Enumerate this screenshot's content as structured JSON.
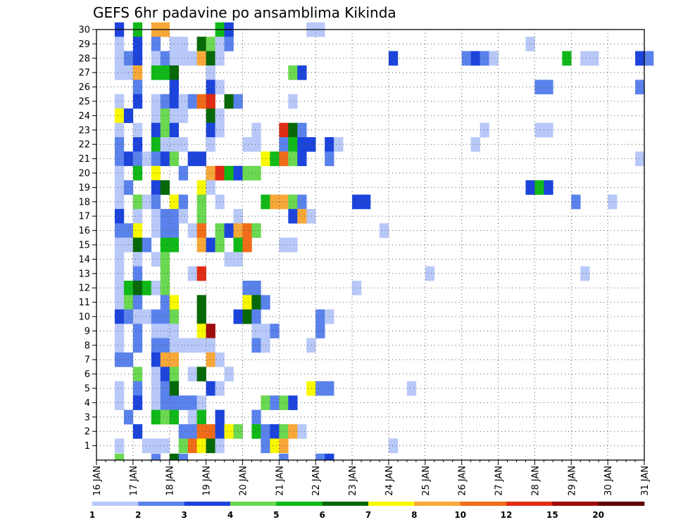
{
  "chart_data": {
    "type": "heatmap",
    "title": "GEFS 6hr padavine po ansamblima Kikinda",
    "xlabel": "",
    "ylabel": "",
    "x_ticks": [
      "16 JAN",
      "17 JAN",
      "18 JAN",
      "19 JAN",
      "20 JAN",
      "21 JAN",
      "22 JAN",
      "23 JAN",
      "24 JAN",
      "25 JAN",
      "26 JAN",
      "27 JAN",
      "28 JAN",
      "29 JAN",
      "30 JAN",
      "31 JAN"
    ],
    "x_range_days": [
      0,
      15
    ],
    "y_ticks": [
      1,
      2,
      3,
      4,
      5,
      6,
      7,
      8,
      9,
      10,
      11,
      12,
      13,
      14,
      15,
      16,
      17,
      18,
      19,
      20,
      21,
      22,
      23,
      24,
      25,
      26,
      27,
      28,
      29,
      30
    ],
    "y_range": [
      0,
      30
    ],
    "grid": true,
    "colorbar": {
      "levels": [
        "1",
        "2",
        "3",
        "4",
        "5",
        "6",
        "7",
        "8",
        "10",
        "12",
        "15",
        "20"
      ],
      "colors": [
        "#b8c8f8",
        "#5a82ec",
        "#1c44dc",
        "#6ad850",
        "#10b818",
        "#066806",
        "#f8f800",
        "#f8a838",
        "#f06c18",
        "#e02c14",
        "#a00c0c",
        "#600000"
      ]
    },
    "cells_note": "each cell: [member, x-start in days since 16 JAN 00z (6-hourly steps), color class index 0-11]",
    "cells": [
      [
        30,
        0.5,
        2
      ],
      [
        30,
        1,
        4
      ],
      [
        30,
        1.5,
        7
      ],
      [
        30,
        1.75,
        7
      ],
      [
        30,
        3.25,
        4
      ],
      [
        30,
        3.5,
        2
      ],
      [
        30,
        5.75,
        0
      ],
      [
        30,
        6,
        0
      ],
      [
        29,
        0.5,
        0
      ],
      [
        29,
        1,
        2
      ],
      [
        29,
        1.5,
        1
      ],
      [
        29,
        2,
        0
      ],
      [
        29,
        2.25,
        0
      ],
      [
        29,
        2.75,
        5
      ],
      [
        29,
        3,
        3
      ],
      [
        29,
        3.25,
        0
      ],
      [
        29,
        3.5,
        1
      ],
      [
        29,
        11.75,
        0
      ],
      [
        28,
        0.5,
        0
      ],
      [
        28,
        0.75,
        1
      ],
      [
        28,
        1,
        2
      ],
      [
        28,
        1.5,
        0
      ],
      [
        28,
        1.75,
        1
      ],
      [
        28,
        2,
        0
      ],
      [
        28,
        2.25,
        0
      ],
      [
        28,
        2.5,
        0
      ],
      [
        28,
        2.75,
        7
      ],
      [
        28,
        3,
        5
      ],
      [
        28,
        3.25,
        0
      ],
      [
        28,
        8,
        2
      ],
      [
        28,
        10,
        1
      ],
      [
        28,
        10.25,
        2
      ],
      [
        28,
        10.5,
        1
      ],
      [
        28,
        10.75,
        0
      ],
      [
        28,
        12.75,
        4
      ],
      [
        28,
        13.25,
        0
      ],
      [
        28,
        13.5,
        0
      ],
      [
        28,
        14.75,
        2
      ],
      [
        28,
        15,
        1
      ],
      [
        27,
        0.5,
        0
      ],
      [
        27,
        0.75,
        0
      ],
      [
        27,
        1,
        7
      ],
      [
        27,
        1.5,
        4
      ],
      [
        27,
        1.75,
        4
      ],
      [
        27,
        2,
        5
      ],
      [
        27,
        3,
        0
      ],
      [
        27,
        5.25,
        3
      ],
      [
        27,
        5.5,
        2
      ],
      [
        26,
        1,
        1
      ],
      [
        26,
        2,
        2
      ],
      [
        26,
        3,
        2
      ],
      [
        26,
        3.25,
        0
      ],
      [
        26,
        12,
        1
      ],
      [
        26,
        12.25,
        1
      ],
      [
        26,
        14.75,
        1
      ],
      [
        25,
        0.5,
        0
      ],
      [
        25,
        1,
        2
      ],
      [
        25,
        1.5,
        0
      ],
      [
        25,
        1.75,
        1
      ],
      [
        25,
        2,
        2
      ],
      [
        25,
        2.25,
        0
      ],
      [
        25,
        2.5,
        1
      ],
      [
        25,
        2.75,
        8
      ],
      [
        25,
        3,
        9
      ],
      [
        25,
        3.5,
        5
      ],
      [
        25,
        3.75,
        1
      ],
      [
        25,
        5.25,
        0
      ],
      [
        24,
        0.5,
        6
      ],
      [
        24,
        0.75,
        2
      ],
      [
        24,
        1.5,
        0
      ],
      [
        24,
        1.75,
        3
      ],
      [
        24,
        2,
        0
      ],
      [
        24,
        2.25,
        0
      ],
      [
        24,
        3,
        5
      ],
      [
        24,
        3.25,
        0
      ],
      [
        23,
        0.5,
        0
      ],
      [
        23,
        1,
        0
      ],
      [
        23,
        1.5,
        2
      ],
      [
        23,
        1.75,
        3
      ],
      [
        23,
        2,
        2
      ],
      [
        23,
        3,
        2
      ],
      [
        23,
        3.25,
        0
      ],
      [
        23,
        4.25,
        0
      ],
      [
        23,
        5,
        9
      ],
      [
        23,
        5.25,
        5
      ],
      [
        23,
        5.5,
        1
      ],
      [
        23,
        10.5,
        0
      ],
      [
        23,
        12,
        0
      ],
      [
        23,
        12.25,
        0
      ],
      [
        22,
        0.5,
        1
      ],
      [
        22,
        1,
        2
      ],
      [
        22,
        1.5,
        4
      ],
      [
        22,
        1.75,
        0
      ],
      [
        22,
        2,
        0
      ],
      [
        22,
        2.25,
        0
      ],
      [
        22,
        3,
        0
      ],
      [
        22,
        4,
        0
      ],
      [
        22,
        4.25,
        0
      ],
      [
        22,
        5,
        1
      ],
      [
        22,
        5.25,
        4
      ],
      [
        22,
        5.5,
        2
      ],
      [
        22,
        5.75,
        2
      ],
      [
        22,
        6.25,
        2
      ],
      [
        22,
        6.5,
        0
      ],
      [
        22,
        10.25,
        0
      ],
      [
        21,
        0.5,
        1
      ],
      [
        21,
        0.75,
        2
      ],
      [
        21,
        1,
        1
      ],
      [
        21,
        1.25,
        0
      ],
      [
        21,
        1.5,
        1
      ],
      [
        21,
        1.75,
        2
      ],
      [
        21,
        2,
        3
      ],
      [
        21,
        2.5,
        2
      ],
      [
        21,
        2.75,
        2
      ],
      [
        21,
        4.5,
        6
      ],
      [
        21,
        4.75,
        4
      ],
      [
        21,
        5,
        8
      ],
      [
        21,
        5.25,
        3
      ],
      [
        21,
        5.5,
        2
      ],
      [
        21,
        6.25,
        1
      ],
      [
        21,
        14.75,
        0
      ],
      [
        20,
        0.5,
        0
      ],
      [
        20,
        1,
        4
      ],
      [
        20,
        1.5,
        6
      ],
      [
        20,
        2.25,
        1
      ],
      [
        20,
        3,
        7
      ],
      [
        20,
        3.25,
        9
      ],
      [
        20,
        3.5,
        4
      ],
      [
        20,
        3.75,
        2
      ],
      [
        20,
        4,
        3
      ],
      [
        20,
        4.25,
        3
      ],
      [
        19,
        0.5,
        0
      ],
      [
        19,
        0.75,
        1
      ],
      [
        19,
        1.5,
        2
      ],
      [
        19,
        1.75,
        5
      ],
      [
        19,
        2.75,
        6
      ],
      [
        19,
        3,
        0
      ],
      [
        19,
        11.75,
        2
      ],
      [
        19,
        12,
        4
      ],
      [
        19,
        12.25,
        2
      ],
      [
        18,
        0.5,
        0
      ],
      [
        18,
        1,
        3
      ],
      [
        18,
        1.25,
        0
      ],
      [
        18,
        1.5,
        1
      ],
      [
        18,
        2,
        6
      ],
      [
        18,
        2.25,
        1
      ],
      [
        18,
        2.75,
        3
      ],
      [
        18,
        3.25,
        0
      ],
      [
        18,
        4.5,
        4
      ],
      [
        18,
        4.75,
        7
      ],
      [
        18,
        5,
        7
      ],
      [
        18,
        5.25,
        3
      ],
      [
        18,
        5.5,
        1
      ],
      [
        18,
        7,
        2
      ],
      [
        18,
        7.25,
        2
      ],
      [
        18,
        13,
        1
      ],
      [
        18,
        14,
        0
      ],
      [
        17,
        0.5,
        2
      ],
      [
        17,
        1,
        0
      ],
      [
        17,
        1.5,
        0
      ],
      [
        17,
        1.75,
        1
      ],
      [
        17,
        2,
        1
      ],
      [
        17,
        2.25,
        0
      ],
      [
        17,
        2.75,
        3
      ],
      [
        17,
        3.75,
        0
      ],
      [
        17,
        5.25,
        2
      ],
      [
        17,
        5.5,
        7
      ],
      [
        17,
        5.75,
        0
      ],
      [
        16,
        0.5,
        1
      ],
      [
        16,
        0.75,
        1
      ],
      [
        16,
        1,
        6
      ],
      [
        16,
        1.5,
        0
      ],
      [
        16,
        1.75,
        1
      ],
      [
        16,
        2,
        1
      ],
      [
        16,
        2.5,
        0
      ],
      [
        16,
        2.75,
        8
      ],
      [
        16,
        3.25,
        3
      ],
      [
        16,
        3.5,
        2
      ],
      [
        16,
        3.75,
        7
      ],
      [
        16,
        4,
        8
      ],
      [
        16,
        4.25,
        3
      ],
      [
        16,
        7.75,
        0
      ],
      [
        15,
        0.5,
        0
      ],
      [
        15,
        0.75,
        0
      ],
      [
        15,
        1,
        5
      ],
      [
        15,
        1.25,
        1
      ],
      [
        15,
        1.75,
        4
      ],
      [
        15,
        2,
        4
      ],
      [
        15,
        2.75,
        7
      ],
      [
        15,
        3,
        2
      ],
      [
        15,
        3.25,
        3
      ],
      [
        15,
        3.75,
        4
      ],
      [
        15,
        4,
        8
      ],
      [
        15,
        5,
        0
      ],
      [
        15,
        5.25,
        0
      ],
      [
        14,
        0.5,
        0
      ],
      [
        14,
        1,
        0
      ],
      [
        14,
        1.5,
        0
      ],
      [
        14,
        1.75,
        3
      ],
      [
        14,
        3.5,
        0
      ],
      [
        14,
        3.75,
        0
      ],
      [
        13,
        0.5,
        0
      ],
      [
        13,
        1,
        1
      ],
      [
        13,
        1.75,
        3
      ],
      [
        13,
        2.5,
        0
      ],
      [
        13,
        2.75,
        9
      ],
      [
        13,
        9,
        0
      ],
      [
        13,
        13.25,
        0
      ],
      [
        12,
        0.5,
        0
      ],
      [
        12,
        0.75,
        4
      ],
      [
        12,
        1,
        5
      ],
      [
        12,
        1.25,
        4
      ],
      [
        12,
        1.5,
        0
      ],
      [
        12,
        1.75,
        3
      ],
      [
        12,
        4,
        1
      ],
      [
        12,
        4.25,
        1
      ],
      [
        12,
        7,
        0
      ],
      [
        11,
        0.5,
        0
      ],
      [
        11,
        0.75,
        3
      ],
      [
        11,
        1,
        1
      ],
      [
        11,
        1.75,
        1
      ],
      [
        11,
        2,
        6
      ],
      [
        11,
        2.75,
        5
      ],
      [
        11,
        4,
        6
      ],
      [
        11,
        4.25,
        5
      ],
      [
        11,
        4.5,
        1
      ],
      [
        10,
        0.5,
        2
      ],
      [
        10,
        0.75,
        1
      ],
      [
        10,
        1,
        0
      ],
      [
        10,
        1.25,
        0
      ],
      [
        10,
        1.5,
        1
      ],
      [
        10,
        1.75,
        1
      ],
      [
        10,
        2,
        3
      ],
      [
        10,
        2.75,
        5
      ],
      [
        10,
        3.75,
        2
      ],
      [
        10,
        4,
        5
      ],
      [
        10,
        4.25,
        1
      ],
      [
        10,
        6,
        1
      ],
      [
        10,
        6.25,
        0
      ],
      [
        9,
        0.5,
        0
      ],
      [
        9,
        1,
        1
      ],
      [
        9,
        1.5,
        0
      ],
      [
        9,
        1.75,
        0
      ],
      [
        9,
        2,
        0
      ],
      [
        9,
        2.75,
        6
      ],
      [
        9,
        3,
        10
      ],
      [
        9,
        4.25,
        0
      ],
      [
        9,
        4.5,
        0
      ],
      [
        9,
        4.75,
        1
      ],
      [
        9,
        6,
        1
      ],
      [
        8,
        0.5,
        0
      ],
      [
        8,
        1,
        1
      ],
      [
        8,
        1.5,
        1
      ],
      [
        8,
        1.75,
        1
      ],
      [
        8,
        2,
        0
      ],
      [
        8,
        2.25,
        0
      ],
      [
        8,
        2.5,
        0
      ],
      [
        8,
        2.75,
        0
      ],
      [
        8,
        3,
        0
      ],
      [
        8,
        4.25,
        1
      ],
      [
        8,
        4.5,
        0
      ],
      [
        8,
        5.75,
        0
      ],
      [
        7,
        0.5,
        1
      ],
      [
        7,
        0.75,
        1
      ],
      [
        7,
        1.5,
        2
      ],
      [
        7,
        1.75,
        7
      ],
      [
        7,
        2,
        7
      ],
      [
        7,
        3,
        7
      ],
      [
        7,
        3.25,
        0
      ],
      [
        6,
        1,
        3
      ],
      [
        6,
        1.5,
        0
      ],
      [
        6,
        1.75,
        2
      ],
      [
        6,
        2,
        3
      ],
      [
        6,
        2.5,
        0
      ],
      [
        6,
        2.75,
        5
      ],
      [
        6,
        3.5,
        0
      ],
      [
        5,
        0.5,
        0
      ],
      [
        5,
        1,
        1
      ],
      [
        5,
        1.5,
        0
      ],
      [
        5,
        1.75,
        1
      ],
      [
        5,
        2,
        5
      ],
      [
        5,
        3,
        2
      ],
      [
        5,
        3.25,
        0
      ],
      [
        5,
        5.75,
        6
      ],
      [
        5,
        6,
        1
      ],
      [
        5,
        6.25,
        1
      ],
      [
        5,
        8.5,
        0
      ],
      [
        4,
        0.5,
        0
      ],
      [
        4,
        1,
        2
      ],
      [
        4,
        1.5,
        0
      ],
      [
        4,
        1.75,
        1
      ],
      [
        4,
        2,
        1
      ],
      [
        4,
        2.25,
        1
      ],
      [
        4,
        2.5,
        1
      ],
      [
        4,
        2.75,
        0
      ],
      [
        4,
        4.5,
        3
      ],
      [
        4,
        4.75,
        1
      ],
      [
        4,
        5,
        3
      ],
      [
        4,
        5.25,
        2
      ],
      [
        3,
        0.75,
        1
      ],
      [
        3,
        1.5,
        4
      ],
      [
        3,
        1.75,
        3
      ],
      [
        3,
        2,
        4
      ],
      [
        3,
        2.5,
        0
      ],
      [
        3,
        2.75,
        4
      ],
      [
        3,
        3.25,
        2
      ],
      [
        3,
        4.25,
        1
      ],
      [
        2,
        1,
        2
      ],
      [
        2,
        2.25,
        1
      ],
      [
        2,
        2.5,
        1
      ],
      [
        2,
        2.75,
        8
      ],
      [
        2,
        3,
        8
      ],
      [
        2,
        3.25,
        2
      ],
      [
        2,
        3.5,
        6
      ],
      [
        2,
        3.75,
        3
      ],
      [
        2,
        4.25,
        4
      ],
      [
        2,
        4.5,
        1
      ],
      [
        2,
        4.75,
        2
      ],
      [
        2,
        5,
        3
      ],
      [
        2,
        5.25,
        7
      ],
      [
        2,
        5.5,
        0
      ],
      [
        1,
        0.5,
        0
      ],
      [
        1,
        1.25,
        0
      ],
      [
        1,
        1.5,
        0
      ],
      [
        1,
        1.75,
        0
      ],
      [
        1,
        2.25,
        3
      ],
      [
        1,
        2.5,
        8
      ],
      [
        1,
        2.75,
        6
      ],
      [
        1,
        3,
        5
      ],
      [
        1,
        3.25,
        0
      ],
      [
        1,
        4.5,
        1
      ],
      [
        1,
        4.75,
        6
      ],
      [
        1,
        5,
        7
      ],
      [
        1,
        8,
        0
      ],
      [
        0,
        0.5,
        3
      ],
      [
        0,
        1.5,
        1
      ],
      [
        0,
        2,
        5
      ],
      [
        0,
        2.25,
        1
      ],
      [
        0,
        5,
        1
      ],
      [
        0,
        6,
        1
      ],
      [
        0,
        6.25,
        2
      ]
    ]
  }
}
